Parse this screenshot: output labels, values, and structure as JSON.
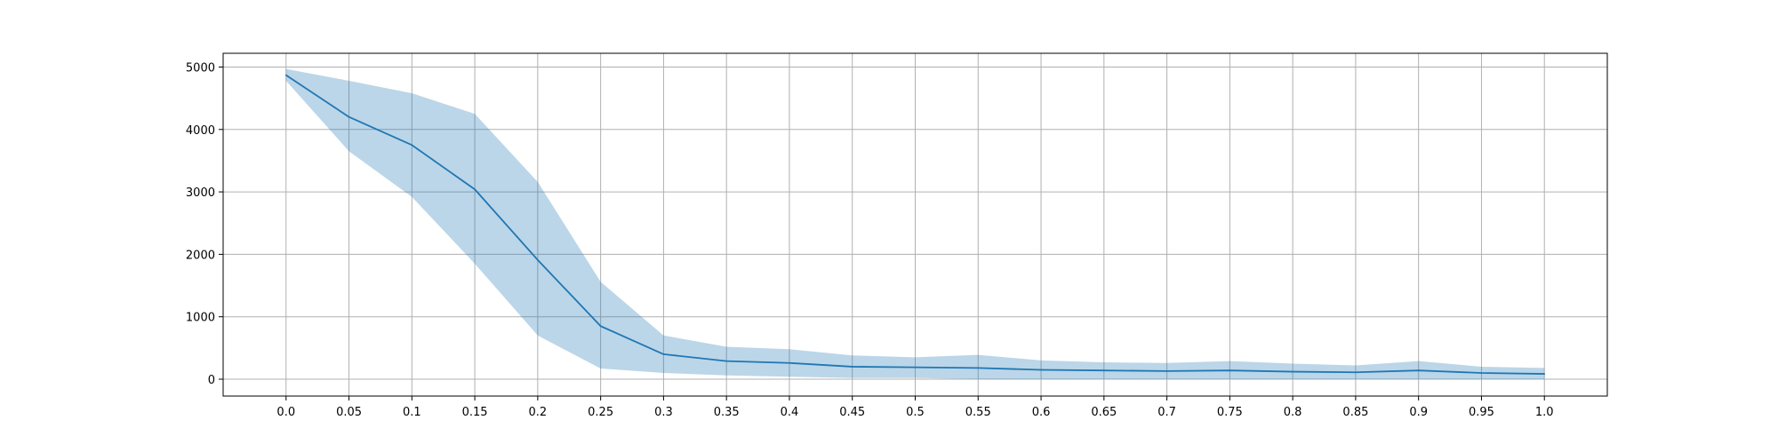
{
  "chart_data": {
    "type": "line",
    "title": "",
    "xlabel": "",
    "ylabel": "",
    "grid": true,
    "legend": "none",
    "x": [
      0.0,
      0.05,
      0.1,
      0.15,
      0.2,
      0.25,
      0.3,
      0.35,
      0.4,
      0.45,
      0.5,
      0.55,
      0.6,
      0.65,
      0.7,
      0.75,
      0.8,
      0.85,
      0.9,
      0.95,
      1.0
    ],
    "x_tick_labels": [
      "0.0",
      "0.05",
      "0.1",
      "0.15",
      "0.2",
      "0.25",
      "0.3",
      "0.35",
      "0.4",
      "0.45",
      "0.5",
      "0.55",
      "0.6",
      "0.65",
      "0.7",
      "0.75",
      "0.8",
      "0.85",
      "0.9",
      "0.95",
      "1.0"
    ],
    "y_ticks": [
      0,
      1000,
      2000,
      3000,
      4000,
      5000
    ],
    "y_tick_labels": [
      "0",
      "1000",
      "2000",
      "3000",
      "4000",
      "5000"
    ],
    "xlim": [
      -0.05,
      1.05
    ],
    "ylim": [
      -270,
      5220
    ],
    "series": [
      {
        "values": [
          4870,
          4200,
          3750,
          3040,
          1910,
          850,
          400,
          290,
          260,
          200,
          190,
          180,
          150,
          140,
          130,
          140,
          120,
          110,
          140,
          100,
          85
        ],
        "band_upper": [
          4970,
          4780,
          4580,
          4250,
          3160,
          1560,
          700,
          520,
          480,
          380,
          350,
          390,
          300,
          270,
          260,
          290,
          250,
          220,
          290,
          200,
          180
        ],
        "band_lower": [
          4780,
          3650,
          2920,
          1850,
          700,
          170,
          100,
          60,
          40,
          20,
          20,
          0,
          0,
          0,
          0,
          0,
          0,
          0,
          0,
          0,
          0
        ]
      }
    ],
    "colors": {
      "line": "#1f77b4",
      "band": "#1f77b4",
      "grid": "#b0b0b0",
      "axes": "#000000"
    }
  }
}
